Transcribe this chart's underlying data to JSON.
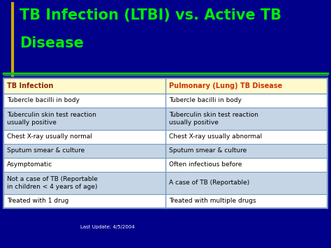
{
  "title_line1": "TB Infection (LTBI) vs. Active TB",
  "title_line2": "Disease",
  "title_color": "#00EE00",
  "title_fontsize": 15,
  "bg_color": "#00008B",
  "header_bg": "#FFFACD",
  "header_left": "TB Infection",
  "header_right": "Pulmonary (Lung) TB Disease",
  "header_left_color": "#8B2500",
  "header_right_color": "#CC3300",
  "rows": [
    [
      "Tubercle bacilli in body",
      "Tubercle bacilli in body"
    ],
    [
      "Tuberculin skin test reaction\nusually positive",
      "Tuberculin skin test reaction\nusually positive"
    ],
    [
      "Chest X-ray usually normal",
      "Chest X-ray usually abnormal"
    ],
    [
      "Sputum smear & culture",
      "Sputum smear & culture"
    ],
    [
      "Asymptomatic",
      "Often infectious before"
    ],
    [
      "Not a case of TB (Reportable\nin children < 4 years of age)",
      "A case of TB (Reportable)"
    ],
    [
      "Treated with 1 drug",
      "Treated with multiple drugs"
    ]
  ],
  "footer_text": "Last Update: 4/5/2004",
  "accent_line_color": "#00CC00",
  "yellow_line_color": "#CCAA00",
  "divider_color": "#7799BB",
  "cell_text_color": "#000000",
  "table_border_color": "#7799BB",
  "row_alt_color": "#C5D5E5",
  "row_white_color": "#FFFFFF"
}
